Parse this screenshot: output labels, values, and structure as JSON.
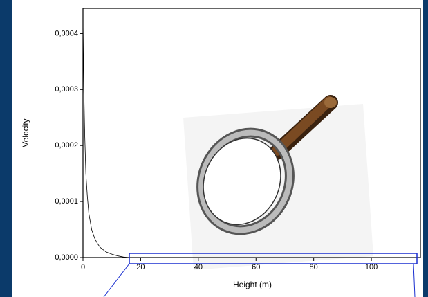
{
  "chart_data": {
    "type": "line",
    "x_label": "Height (m)",
    "y_label": "Velocity",
    "x": [
      0,
      0.3,
      0.6,
      1,
      1.5,
      2,
      3,
      4,
      5,
      6,
      8,
      10,
      12,
      14,
      16
    ],
    "values": [
      0.00042,
      0.0003,
      0.00022,
      0.00015,
      0.00011,
      8e-05,
      5e-05,
      3.5e-05,
      2.5e-05,
      1.8e-05,
      1e-05,
      6e-06,
      3e-06,
      1e-06,
      0
    ],
    "color": "#000000",
    "xlim": [
      0,
      117
    ],
    "xticks": [
      0,
      20,
      40,
      60,
      80,
      100
    ],
    "ylim": [
      0,
      0.000445
    ],
    "yticks": [
      {
        "value": 0,
        "label": "0,0000"
      },
      {
        "value": 0.0001,
        "label": "0,0001"
      },
      {
        "value": 0.0002,
        "label": "0,0002"
      },
      {
        "value": 0.0003,
        "label": "0,0003"
      },
      {
        "value": 0.0004,
        "label": "0,0004"
      }
    ],
    "grid": false
  }
}
